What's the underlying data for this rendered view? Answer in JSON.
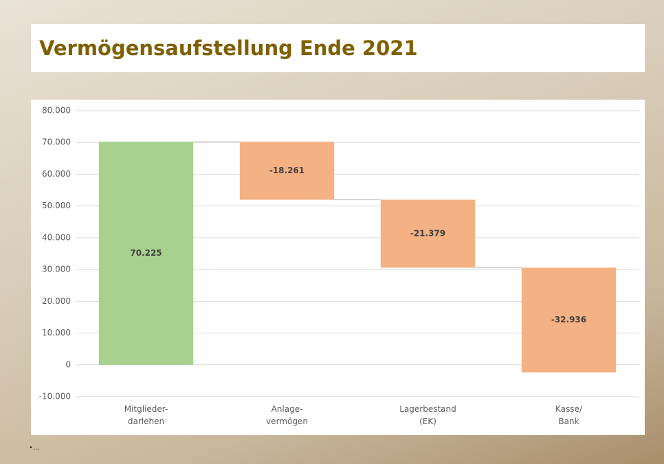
{
  "chart_data": {
    "type": "waterfall",
    "title": "Vermögensaufstellung Ende 2021",
    "categories": [
      "Mitglieder-\ndarlehen",
      "Anlage-\nvermögen",
      "Lagerbestand\n(EK)",
      "Kasse/\nBank"
    ],
    "values": [
      70225,
      -18261,
      -21379,
      -32936
    ],
    "value_labels": [
      "70.225",
      "-18.261",
      "-21.379",
      "-32.936"
    ],
    "colors": [
      "#a9d18e",
      "#f4b183",
      "#f4b183",
      "#f4b183"
    ],
    "ylim": [
      -10000,
      80000
    ],
    "yticks": [
      {
        "value": -10000,
        "label": "-10.000"
      },
      0,
      {
        "value": 10000,
        "label": "10.000"
      },
      {
        "value": 20000,
        "label": "20.000"
      },
      {
        "value": 30000,
        "label": "30.000"
      },
      {
        "value": 40000,
        "label": "40.000"
      },
      {
        "value": 50000,
        "label": "50.000"
      },
      {
        "value": 60000,
        "label": "60.000"
      },
      {
        "value": 70000,
        "label": "70.000"
      },
      {
        "value": 80000,
        "label": "80.000"
      }
    ],
    "grid": true
  },
  "footnote": "•…"
}
